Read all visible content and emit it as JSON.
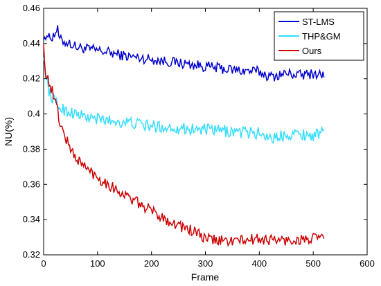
{
  "chart_data": {
    "type": "line",
    "title": "",
    "xlabel": "Frame",
    "ylabel": "NU(%)",
    "xlim": [
      0,
      600
    ],
    "ylim": [
      0.32,
      0.46
    ],
    "xticks": [
      0,
      100,
      200,
      300,
      400,
      500,
      600
    ],
    "yticks": [
      0.32,
      0.34,
      0.36,
      0.38,
      0.4,
      0.42,
      0.44,
      0.46
    ],
    "xtick_labels": [
      "0",
      "100",
      "200",
      "300",
      "400",
      "500",
      "600"
    ],
    "ytick_labels": [
      "0.32",
      "0.34",
      "0.36",
      "0.38",
      "0.4",
      "0.42",
      "0.44",
      "0.46"
    ],
    "grid": false,
    "legend": "top-right",
    "series": [
      {
        "name": "ST-LMS",
        "color": "#0000cc",
        "x": [
          0,
          5,
          10,
          20,
          25,
          30,
          40,
          50,
          60,
          80,
          100,
          120,
          150,
          200,
          250,
          300,
          350,
          400,
          420,
          450,
          480,
          500,
          520
        ],
        "y": [
          0.442,
          0.446,
          0.443,
          0.445,
          0.449,
          0.442,
          0.441,
          0.44,
          0.438,
          0.437,
          0.436,
          0.435,
          0.433,
          0.431,
          0.429,
          0.427,
          0.425,
          0.424,
          0.421,
          0.423,
          0.422,
          0.423,
          0.422
        ]
      },
      {
        "name": "THP&GM",
        "color": "#33ddff",
        "x": [
          0,
          2,
          5,
          10,
          15,
          20,
          30,
          40,
          60,
          80,
          100,
          130,
          160,
          200,
          250,
          300,
          350,
          400,
          430,
          450,
          500,
          520
        ],
        "y": [
          0.432,
          0.428,
          0.421,
          0.413,
          0.41,
          0.407,
          0.404,
          0.402,
          0.4,
          0.398,
          0.397,
          0.396,
          0.395,
          0.393,
          0.392,
          0.391,
          0.39,
          0.389,
          0.386,
          0.389,
          0.388,
          0.389
        ]
      },
      {
        "name": "Ours",
        "color": "#cc0000",
        "x": [
          0,
          2,
          5,
          10,
          15,
          20,
          25,
          30,
          40,
          50,
          60,
          80,
          100,
          130,
          160,
          200,
          240,
          280,
          300,
          330,
          360,
          400,
          450,
          500,
          520
        ],
        "y": [
          0.44,
          0.428,
          0.422,
          0.418,
          0.414,
          0.408,
          0.404,
          0.395,
          0.387,
          0.38,
          0.375,
          0.369,
          0.364,
          0.358,
          0.352,
          0.345,
          0.338,
          0.333,
          0.329,
          0.328,
          0.328,
          0.329,
          0.328,
          0.329,
          0.33
        ]
      }
    ]
  }
}
